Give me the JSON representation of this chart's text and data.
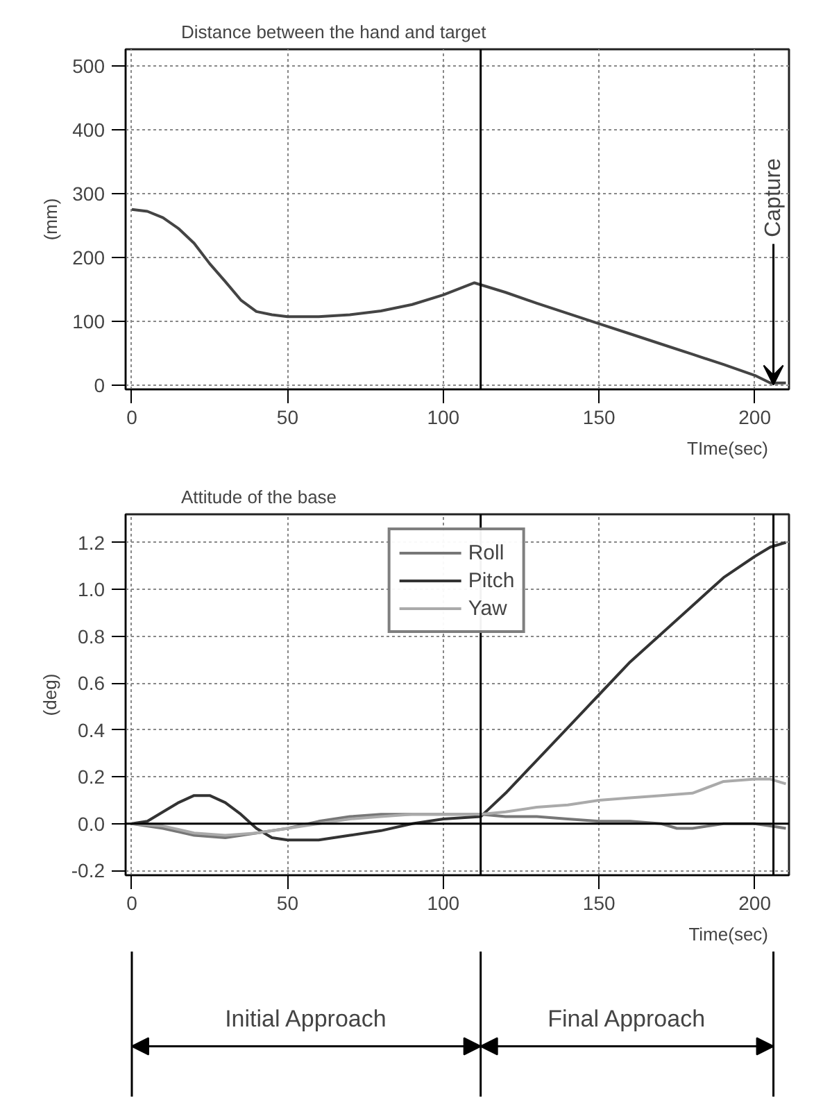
{
  "chart_data": [
    {
      "type": "line",
      "title": "Distance between the hand and target",
      "xlabel": "TIme(sec)",
      "ylabel": "(mm)",
      "xlim": [
        -2,
        211
      ],
      "ylim": [
        -7,
        526
      ],
      "xticks": [
        0,
        50,
        100,
        150,
        200
      ],
      "yticks": [
        0,
        100,
        200,
        300,
        400,
        500
      ],
      "grid": true,
      "legend": false,
      "x": [
        0,
        5,
        10,
        15,
        20,
        25,
        30,
        35,
        40,
        45,
        50,
        60,
        70,
        80,
        90,
        100,
        110,
        120,
        130,
        140,
        150,
        160,
        170,
        180,
        190,
        200,
        205,
        210
      ],
      "series": [
        {
          "color": "#444444",
          "values": [
            275,
            272,
            262,
            245,
            222,
            190,
            162,
            133,
            115,
            110,
            107,
            107,
            110,
            116,
            126,
            141,
            160,
            145,
            128,
            112,
            96,
            80,
            64,
            48,
            32,
            15,
            3,
            3
          ]
        }
      ],
      "ref_lines": [
        {
          "axis": "x",
          "value": 112,
          "color": "#000000"
        }
      ],
      "annotations": [
        {
          "text": "Capture",
          "x": 206,
          "y": 0
        }
      ]
    },
    {
      "type": "line",
      "title": "Attitude of the base",
      "xlabel": "Time(sec)",
      "ylabel": "(deg)",
      "xlim": [
        -2,
        211
      ],
      "ylim": [
        -0.22,
        1.32
      ],
      "xticks": [
        0,
        50,
        100,
        150,
        200
      ],
      "yticks": [
        {
          "value": -0.2,
          "label": "-0.2"
        },
        {
          "value": 0,
          "label": "0.0"
        },
        {
          "value": 0.2,
          "label": "0.2"
        },
        {
          "value": 0.4,
          "label": "0.4"
        },
        {
          "value": 0.6,
          "label": "0.6"
        },
        {
          "value": 0.8,
          "label": "0.8"
        },
        {
          "value": 1,
          "label": "1.0"
        },
        {
          "value": 1.2,
          "label": "1.2"
        }
      ],
      "grid": true,
      "legend": "top",
      "series": [
        {
          "name": "Roll",
          "color": "#777777",
          "x": [
            0,
            10,
            20,
            30,
            40,
            50,
            60,
            70,
            80,
            90,
            100,
            112,
            120,
            130,
            140,
            150,
            160,
            170,
            175,
            180,
            190,
            200,
            205,
            210
          ],
          "values": [
            0,
            -0.02,
            -0.05,
            -0.06,
            -0.04,
            -0.02,
            0.01,
            0.03,
            0.04,
            0.04,
            0.04,
            0.04,
            0.03,
            0.03,
            0.02,
            0.01,
            0.01,
            0,
            -0.02,
            -0.02,
            0,
            0,
            -0.01,
            -0.02
          ]
        },
        {
          "name": "Pitch",
          "color": "#333333",
          "x": [
            0,
            5,
            10,
            15,
            20,
            25,
            30,
            35,
            40,
            45,
            50,
            60,
            70,
            80,
            90,
            100,
            112,
            120,
            130,
            140,
            150,
            160,
            170,
            180,
            190,
            200,
            205,
            210
          ],
          "values": [
            0,
            0.01,
            0.05,
            0.09,
            0.12,
            0.12,
            0.09,
            0.04,
            -0.02,
            -0.06,
            -0.07,
            -0.07,
            -0.05,
            -0.03,
            0,
            0.02,
            0.03,
            0.13,
            0.27,
            0.41,
            0.55,
            0.69,
            0.81,
            0.93,
            1.05,
            1.14,
            1.18,
            1.2
          ]
        },
        {
          "name": "Yaw",
          "color": "#aaaaaa",
          "x": [
            0,
            10,
            20,
            30,
            40,
            50,
            60,
            70,
            80,
            90,
            100,
            112,
            120,
            130,
            140,
            150,
            160,
            170,
            180,
            190,
            200,
            205,
            210
          ],
          "values": [
            0,
            -0.01,
            -0.04,
            -0.05,
            -0.04,
            -0.02,
            0,
            0.02,
            0.03,
            0.04,
            0.04,
            0.04,
            0.05,
            0.07,
            0.08,
            0.1,
            0.11,
            0.12,
            0.13,
            0.18,
            0.19,
            0.19,
            0.17
          ]
        }
      ],
      "ref_lines": [
        {
          "axis": "y",
          "value": 0,
          "color": "#000000"
        },
        {
          "axis": "x",
          "value": 112,
          "color": "#000000"
        },
        {
          "axis": "x",
          "value": 206,
          "color": "#000000"
        }
      ],
      "annotations": [
        "Initial Approach",
        "Final Approach"
      ]
    }
  ]
}
